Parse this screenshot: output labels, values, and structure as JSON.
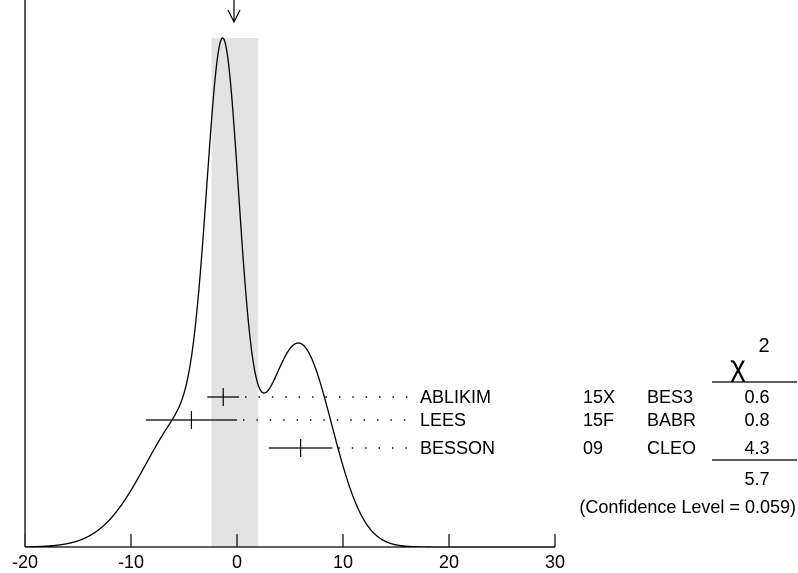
{
  "chart_data": {
    "type": "ideogram",
    "title": "",
    "xlabel": "",
    "ylabel": "",
    "xlim": [
      -20,
      30
    ],
    "x_ticks": [
      {
        "value": -20,
        "label": "-20"
      },
      {
        "value": -10,
        "label": "-10"
      },
      {
        "value": 0,
        "label": "0"
      },
      {
        "value": 10,
        "label": "10"
      },
      {
        "value": 20,
        "label": "20"
      },
      {
        "value": 30,
        "label": "30"
      }
    ],
    "average": {
      "value": -0.2,
      "error": 2.2,
      "band": [
        -2.4,
        2.0
      ]
    },
    "measurements": [
      {
        "author": "ABLIKIM",
        "year": "15X",
        "experiment": "BES3",
        "value": -1.3,
        "error": 1.5,
        "chi2": "0.6"
      },
      {
        "author": "LEES",
        "year": "15F",
        "experiment": "BABR",
        "value": -4.3,
        "error": 4.3,
        "chi2": "0.8"
      },
      {
        "author": "BESSON",
        "year": "09",
        "experiment": "CLEO",
        "value": 6.0,
        "error": 3.0,
        "chi2": "4.3"
      }
    ],
    "chi2_header": "χ",
    "chi2_header_sup": "2",
    "chi2_total": "5.7",
    "confidence_text": "(Confidence Level = 0.059)",
    "colors": {
      "band": "#e3e3e3",
      "ink": "#000000"
    }
  }
}
